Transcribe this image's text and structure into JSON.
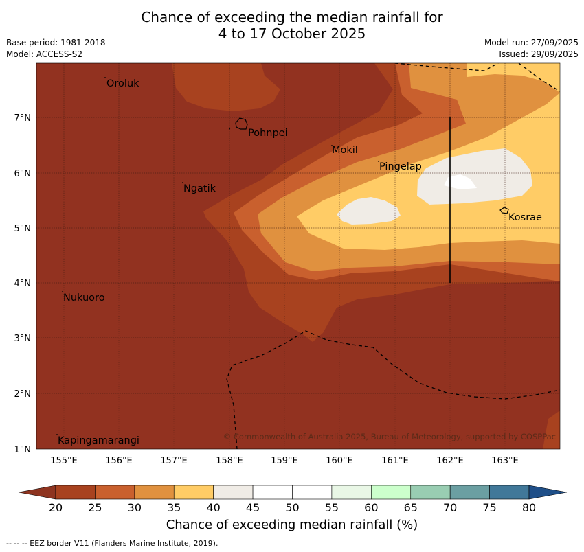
{
  "header": {
    "title_line1": "Chance of exceeding the median rainfall for",
    "title_line2": "4 to 17 October 2025",
    "base_period": "Base period: 1981-2018",
    "model": "Model: ACCESS-S2",
    "model_run": "Model run: 27/09/2025",
    "issued": "Issued: 29/09/2025"
  },
  "map": {
    "lon_ticks": [
      "155°E",
      "156°E",
      "157°E",
      "158°E",
      "159°E",
      "160°E",
      "161°E",
      "162°E",
      "163°E"
    ],
    "lat_ticks": [
      "7°N",
      "6°N",
      "5°N",
      "4°N",
      "3°N",
      "2°N",
      "1°N"
    ],
    "places": [
      "Oroluk",
      "Pohnpei",
      "Mokil",
      "Pingelap",
      "Ngatik",
      "Kosrae",
      "Nukuoro",
      "Kapingamarangi"
    ],
    "copyright": "© Commonwealth of Australia 2025, Bureau of Meteorology, supported by COSPPac"
  },
  "colorbar": {
    "ticks": [
      "20",
      "25",
      "30",
      "35",
      "40",
      "45",
      "50",
      "55",
      "60",
      "65",
      "70",
      "75",
      "80"
    ],
    "colors": [
      "#a8421f",
      "#c9602e",
      "#e0913f",
      "#ffcc66",
      "#f0ece6",
      "#ffffff",
      "#ffffff",
      "#e9f7e6",
      "#ccffcc",
      "#99cdb2",
      "#6b9fa2",
      "#417899"
    ],
    "under_color": "#8e3420",
    "over_color": "#1f4f88",
    "label": "Chance of exceeding median rainfall (%)"
  },
  "footnote": "--  --  -- EEZ border V11 (Flanders Marine Institute, 2019)."
}
